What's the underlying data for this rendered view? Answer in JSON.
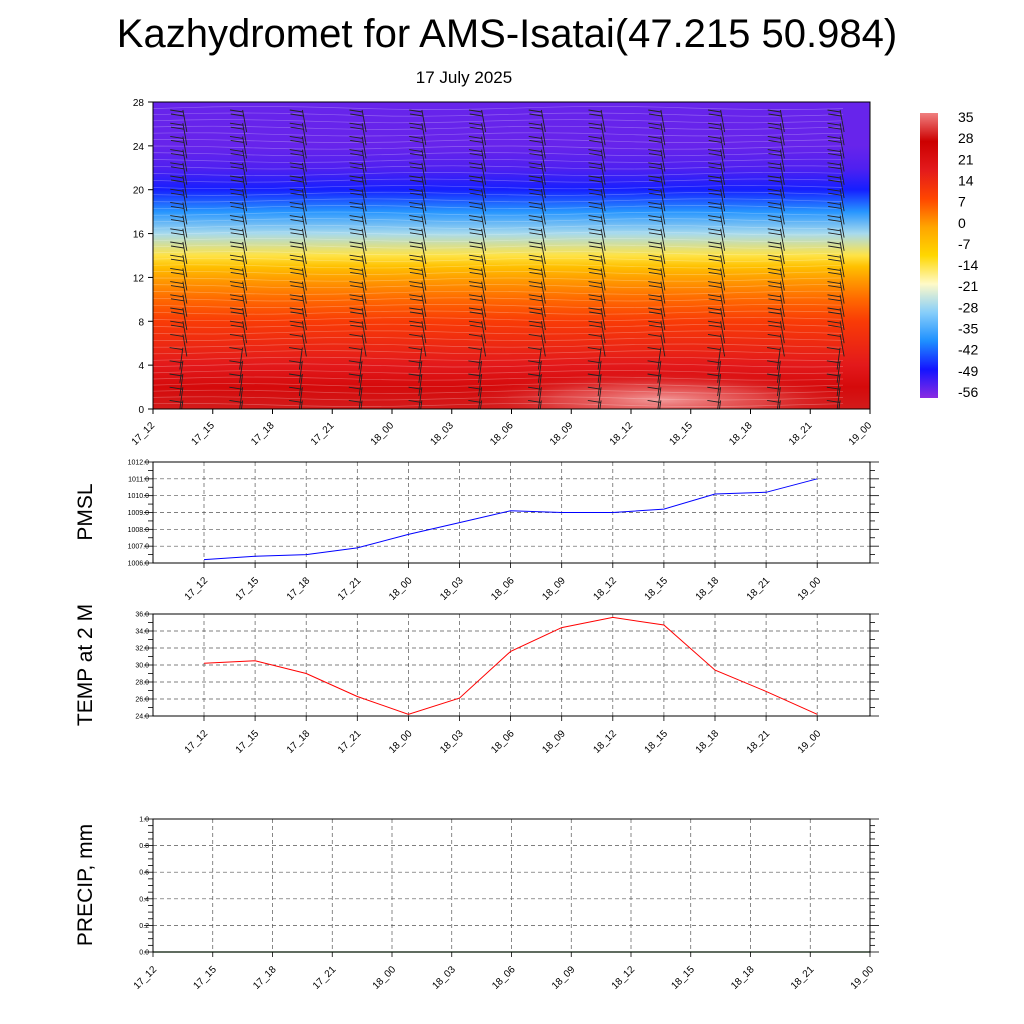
{
  "title": "Kazhydromet for AMS-Isatai(47.215 50.984)",
  "subtitle": "17 July 2025",
  "chart_data": [
    {
      "type": "heatmap",
      "title": "",
      "xlabel": "",
      "ylabel": "",
      "x_tick_labels": [
        "17_12",
        "17_15",
        "17_18",
        "17_21",
        "18_00",
        "18_03",
        "18_06",
        "18_09",
        "18_12",
        "18_15",
        "18_18",
        "18_21",
        "19_00"
      ],
      "y_tick_labels": [
        "0",
        "4",
        "8",
        "12",
        "16",
        "20",
        "24",
        "28"
      ],
      "ylim": [
        0,
        28
      ],
      "level_profile": {
        "levels": [
          0,
          2,
          4,
          6,
          8,
          10,
          12,
          13,
          14,
          16,
          18,
          20,
          22,
          24,
          26,
          28
        ],
        "values": [
          30,
          24,
          18,
          14,
          10,
          4,
          -2,
          -8,
          -16,
          -30,
          -42,
          -52,
          -58,
          -60,
          -60,
          -60
        ]
      },
      "near_surface_afternoon_peak": 35,
      "colorbar": {
        "tick_labels": [
          "35",
          "28",
          "21",
          "14",
          "7",
          "0",
          "-7",
          "-14",
          "-21",
          "-28",
          "-35",
          "-42",
          "-49",
          "-56"
        ],
        "range": [
          -63,
          38
        ],
        "colors": [
          "#8a2be2",
          "#1414ff",
          "#1e90ff",
          "#87cefa",
          "#fffac8",
          "#ffd700",
          "#ffa500",
          "#ff4500",
          "#e31a1c",
          "#cc0000",
          "#f08080"
        ]
      },
      "wind_barbs": true
    },
    {
      "type": "line",
      "ylabel": "PMSL",
      "x_tick_labels": [
        "17_12",
        "17_15",
        "17_18",
        "17_21",
        "18_00",
        "18_03",
        "18_06",
        "18_09",
        "18_12",
        "18_15",
        "18_18",
        "18_21",
        "19_00"
      ],
      "y_tick_labels": [
        "1006.0",
        "1007.0",
        "1008.0",
        "1009.0",
        "1010.0",
        "1011.0",
        "1012.0"
      ],
      "ylim": [
        1006,
        1012
      ],
      "series": [
        {
          "color": "#0000ff",
          "values": [
            1006.2,
            1006.4,
            1006.5,
            1006.9,
            1007.7,
            1008.4,
            1009.1,
            1009.0,
            1009.0,
            1009.2,
            1010.1,
            1010.2,
            1011.0
          ]
        }
      ]
    },
    {
      "type": "line",
      "ylabel": "TEMP at 2 M",
      "x_tick_labels": [
        "17_12",
        "17_15",
        "17_18",
        "17_21",
        "18_00",
        "18_03",
        "18_06",
        "18_09",
        "18_12",
        "18_15",
        "18_18",
        "18_21",
        "19_00"
      ],
      "y_tick_labels": [
        "24.0",
        "26.0",
        "28.0",
        "30.0",
        "32.0",
        "34.0",
        "36.0"
      ],
      "ylim": [
        24,
        36
      ],
      "series": [
        {
          "color": "#ff0000",
          "values": [
            30.2,
            30.5,
            29.0,
            26.3,
            24.2,
            26.1,
            31.6,
            34.4,
            35.6,
            34.7,
            29.4,
            26.9,
            24.2
          ]
        }
      ]
    },
    {
      "type": "line",
      "ylabel": "PRECIP, mm",
      "x_tick_labels": [
        "17_12",
        "17_15",
        "17_18",
        "17_21",
        "18_00",
        "18_03",
        "18_06",
        "18_09",
        "18_12",
        "18_15",
        "18_18",
        "18_21",
        "19_00"
      ],
      "y_tick_labels": [
        "0.0",
        "0.2",
        "0.4",
        "0.6",
        "0.8",
        "1.0"
      ],
      "ylim": [
        0,
        1
      ],
      "series": [
        {
          "color": "#006400",
          "values": [
            0,
            0,
            0,
            0,
            0,
            0,
            0,
            0,
            0,
            0,
            0,
            0,
            0
          ]
        }
      ]
    }
  ]
}
